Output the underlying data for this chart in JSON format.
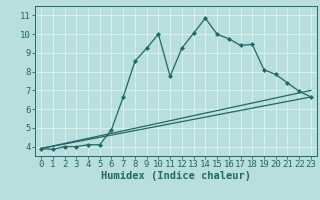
{
  "bg_color": "#b8dede",
  "line_color": "#206868",
  "grid_color": "#d8f0f0",
  "xlabel": "Humidex (Indice chaleur)",
  "xlim": [
    -0.5,
    23.5
  ],
  "ylim": [
    3.5,
    11.5
  ],
  "xticks": [
    0,
    1,
    2,
    3,
    4,
    5,
    6,
    7,
    8,
    9,
    10,
    11,
    12,
    13,
    14,
    15,
    16,
    17,
    18,
    19,
    20,
    21,
    22,
    23
  ],
  "yticks": [
    4,
    5,
    6,
    7,
    8,
    9,
    10,
    11
  ],
  "line1_x": [
    0,
    1,
    2,
    3,
    4,
    5,
    6,
    7,
    8,
    9,
    10,
    11,
    12,
    13,
    14,
    15,
    16,
    17,
    18,
    19,
    20,
    21,
    22,
    23
  ],
  "line1_y": [
    3.9,
    3.85,
    4.0,
    4.0,
    4.1,
    4.1,
    4.9,
    6.65,
    8.55,
    9.25,
    10.0,
    7.75,
    9.25,
    10.05,
    10.85,
    10.0,
    9.75,
    9.4,
    9.45,
    8.1,
    7.85,
    7.4,
    6.95,
    6.65
  ],
  "line2_x": [
    0,
    23
  ],
  "line2_y": [
    3.9,
    7.0
  ],
  "line3_x": [
    0,
    23
  ],
  "line3_y": [
    3.9,
    6.65
  ],
  "tick_fontsize": 6.5,
  "xlabel_fontsize": 7.5,
  "marker": "D",
  "markersize": 2.2,
  "linewidth": 0.9
}
